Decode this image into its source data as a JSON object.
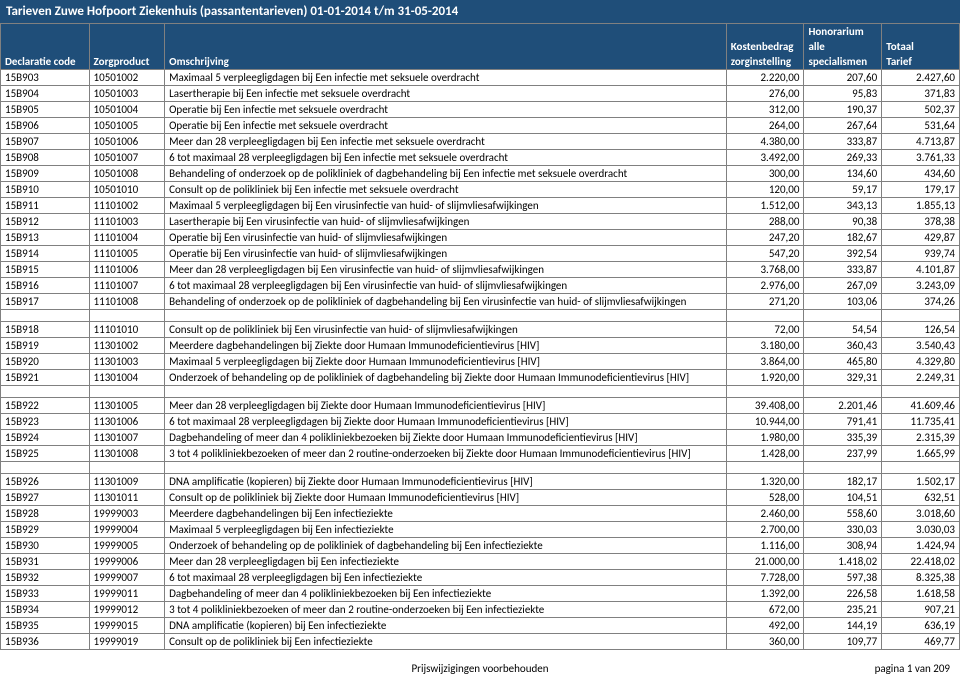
{
  "title": "Tarieven Zuwe Hofpoort Ziekenhuis (passantentarieven) 01-01-2014 t/m 31-05-2014",
  "columns": {
    "decl": "Declaratie code",
    "zorg": "Zorgproduct",
    "omsch": "Omschrijving",
    "kost_top": "Kostenbedrag",
    "kost_bot": "zorginstelling",
    "hono_top": "Honorarium",
    "hono_mid": "alle",
    "hono_bot": "specialismen",
    "tot_top": "Totaal",
    "tot_bot": "Tarief"
  },
  "groups": [
    {
      "rows": [
        {
          "d": "15B903",
          "z": "10501002",
          "o": "Maximaal 5 verpleegligdagen bij Een infectie met seksuele overdracht",
          "k": "2.220,00",
          "h": "207,60",
          "t": "2.427,60"
        },
        {
          "d": "15B904",
          "z": "10501003",
          "o": "Lasertherapie bij Een infectie met seksuele overdracht",
          "k": "276,00",
          "h": "95,83",
          "t": "371,83"
        },
        {
          "d": "15B905",
          "z": "10501004",
          "o": "Operatie bij Een infectie met seksuele overdracht",
          "k": "312,00",
          "h": "190,37",
          "t": "502,37"
        },
        {
          "d": "15B906",
          "z": "10501005",
          "o": "Operatie bij Een infectie met seksuele overdracht",
          "k": "264,00",
          "h": "267,64",
          "t": "531,64"
        },
        {
          "d": "15B907",
          "z": "10501006",
          "o": "Meer dan 28 verpleegligdagen bij Een infectie met seksuele overdracht",
          "k": "4.380,00",
          "h": "333,87",
          "t": "4.713,87"
        },
        {
          "d": "15B908",
          "z": "10501007",
          "o": "6 tot maximaal 28 verpleegligdagen bij Een infectie met seksuele overdracht",
          "k": "3.492,00",
          "h": "269,33",
          "t": "3.761,33"
        },
        {
          "d": "15B909",
          "z": "10501008",
          "o": "Behandeling of onderzoek op de polikliniek of dagbehandeling bij Een infectie met seksuele overdracht",
          "k": "300,00",
          "h": "134,60",
          "t": "434,60"
        },
        {
          "d": "15B910",
          "z": "10501010",
          "o": "Consult op de polikliniek bij Een infectie met seksuele overdracht",
          "k": "120,00",
          "h": "59,17",
          "t": "179,17"
        },
        {
          "d": "15B911",
          "z": "11101002",
          "o": "Maximaal 5 verpleegligdagen bij Een virusinfectie van huid- of slijmvliesafwijkingen",
          "k": "1.512,00",
          "h": "343,13",
          "t": "1.855,13"
        },
        {
          "d": "15B912",
          "z": "11101003",
          "o": "Lasertherapie bij Een virusinfectie van huid- of slijmvliesafwijkingen",
          "k": "288,00",
          "h": "90,38",
          "t": "378,38"
        },
        {
          "d": "15B913",
          "z": "11101004",
          "o": "Operatie bij Een virusinfectie van huid- of slijmvliesafwijkingen",
          "k": "247,20",
          "h": "182,67",
          "t": "429,87"
        },
        {
          "d": "15B914",
          "z": "11101005",
          "o": "Operatie bij Een virusinfectie van huid- of slijmvliesafwijkingen",
          "k": "547,20",
          "h": "392,54",
          "t": "939,74"
        },
        {
          "d": "15B915",
          "z": "11101006",
          "o": "Meer dan 28 verpleegligdagen bij Een virusinfectie van huid- of slijmvliesafwijkingen",
          "k": "3.768,00",
          "h": "333,87",
          "t": "4.101,87"
        },
        {
          "d": "15B916",
          "z": "11101007",
          "o": "6 tot maximaal 28 verpleegligdagen bij Een virusinfectie van huid- of slijmvliesafwijkingen",
          "k": "2.976,00",
          "h": "267,09",
          "t": "3.243,09"
        },
        {
          "d": "15B917",
          "z": "11101008",
          "o": "Behandeling of onderzoek op de polikliniek of dagbehandeling bij Een virusinfectie van huid- of slijmvliesafwijkingen",
          "k": "271,20",
          "h": "103,06",
          "t": "374,26"
        }
      ]
    },
    {
      "rows": [
        {
          "d": "15B918",
          "z": "11101010",
          "o": "Consult op de polikliniek bij Een virusinfectie van huid- of slijmvliesafwijkingen",
          "k": "72,00",
          "h": "54,54",
          "t": "126,54"
        },
        {
          "d": "15B919",
          "z": "11301002",
          "o": "Meerdere dagbehandelingen bij Ziekte door Humaan Immunodeficientievirus [HIV]",
          "k": "3.180,00",
          "h": "360,43",
          "t": "3.540,43"
        },
        {
          "d": "15B920",
          "z": "11301003",
          "o": "Maximaal 5 verpleegligdagen bij Ziekte door Humaan Immunodeficientievirus [HIV]",
          "k": "3.864,00",
          "h": "465,80",
          "t": "4.329,80"
        },
        {
          "d": "15B921",
          "z": "11301004",
          "o": "Onderzoek of behandeling op de polikliniek of dagbehandeling bij Ziekte door Humaan Immunodeficientievirus [HIV]",
          "k": "1.920,00",
          "h": "329,31",
          "t": "2.249,31"
        }
      ]
    },
    {
      "rows": [
        {
          "d": "15B922",
          "z": "11301005",
          "o": "Meer dan 28 verpleegligdagen bij Ziekte door Humaan Immunodeficientievirus [HIV]",
          "k": "39.408,00",
          "h": "2.201,46",
          "t": "41.609,46"
        },
        {
          "d": "15B923",
          "z": "11301006",
          "o": "6 tot maximaal 28 verpleegligdagen bij Ziekte door Humaan Immunodeficientievirus [HIV]",
          "k": "10.944,00",
          "h": "791,41",
          "t": "11.735,41"
        },
        {
          "d": "15B924",
          "z": "11301007",
          "o": "Dagbehandeling of meer dan 4 polikliniekbezoeken bij Ziekte door Humaan Immunodeficientievirus [HIV]",
          "k": "1.980,00",
          "h": "335,39",
          "t": "2.315,39"
        },
        {
          "d": "15B925",
          "z": "11301008",
          "o": "3 tot 4 polikliniekbezoeken of meer dan 2 routine-onderzoeken bij Ziekte door Humaan Immunodeficientievirus [HIV]",
          "k": "1.428,00",
          "h": "237,99",
          "t": "1.665,99"
        }
      ]
    },
    {
      "rows": [
        {
          "d": "15B926",
          "z": "11301009",
          "o": "DNA amplificatie (kopieren) bij Ziekte door Humaan Immunodeficientievirus [HIV]",
          "k": "1.320,00",
          "h": "182,17",
          "t": "1.502,17"
        },
        {
          "d": "15B927",
          "z": "11301011",
          "o": "Consult op de polikliniek bij Ziekte door Humaan Immunodeficientievirus [HIV]",
          "k": "528,00",
          "h": "104,51",
          "t": "632,51"
        },
        {
          "d": "15B928",
          "z": "19999003",
          "o": "Meerdere dagbehandelingen bij Een infectieziekte",
          "k": "2.460,00",
          "h": "558,60",
          "t": "3.018,60"
        },
        {
          "d": "15B929",
          "z": "19999004",
          "o": "Maximaal 5 verpleegligdagen bij Een infectieziekte",
          "k": "2.700,00",
          "h": "330,03",
          "t": "3.030,03"
        },
        {
          "d": "15B930",
          "z": "19999005",
          "o": "Onderzoek of behandeling op de polikliniek of dagbehandeling bij Een infectieziekte",
          "k": "1.116,00",
          "h": "308,94",
          "t": "1.424,94"
        },
        {
          "d": "15B931",
          "z": "19999006",
          "o": "Meer dan 28 verpleegligdagen bij Een infectieziekte",
          "k": "21.000,00",
          "h": "1.418,02",
          "t": "22.418,02"
        },
        {
          "d": "15B932",
          "z": "19999007",
          "o": "6 tot maximaal 28 verpleegligdagen bij Een infectieziekte",
          "k": "7.728,00",
          "h": "597,38",
          "t": "8.325,38"
        },
        {
          "d": "15B933",
          "z": "19999011",
          "o": "Dagbehandeling of meer dan 4 polikliniekbezoeken bij Een infectieziekte",
          "k": "1.392,00",
          "h": "226,58",
          "t": "1.618,58"
        },
        {
          "d": "15B934",
          "z": "19999012",
          "o": "3 tot 4 polikliniekbezoeken of meer dan 2 routine-onderzoeken bij Een infectieziekte",
          "k": "672,00",
          "h": "235,21",
          "t": "907,21"
        },
        {
          "d": "15B935",
          "z": "19999015",
          "o": "DNA amplificatie (kopieren) bij Een infectieziekte",
          "k": "492,00",
          "h": "144,19",
          "t": "636,19"
        },
        {
          "d": "15B936",
          "z": "19999019",
          "o": "Consult op de polikliniek bij Een infectieziekte",
          "k": "360,00",
          "h": "109,77",
          "t": "469,77"
        }
      ]
    }
  ],
  "footer": {
    "center": "Prijswijzigingen voorbehouden",
    "right": "pagina 1 van 209"
  }
}
